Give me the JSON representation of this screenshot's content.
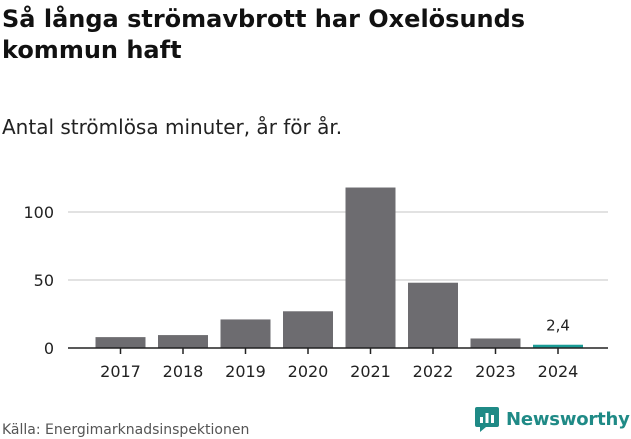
{
  "title": "Så långa strömavbrott har Oxelösunds kommun haft",
  "subtitle": "Antal strömlösa minuter, år för år.",
  "source": "Källa: Energimarknadsinspektionen",
  "brand": {
    "name": "Newsworthy",
    "icon": "newsworthy-logo-icon",
    "color": "#1f8a86"
  },
  "colors": {
    "bar": "#6d6c70",
    "highlight": "#1a9c96",
    "grid": "#d9d9d9",
    "axis": "#222222"
  },
  "chart_data": {
    "type": "bar",
    "title": "Så långa strömavbrott har Oxelösunds kommun haft",
    "subtitle": "Antal strömlösa minuter, år för år.",
    "xlabel": "",
    "ylabel": "",
    "categories": [
      "2017",
      "2018",
      "2019",
      "2020",
      "2021",
      "2022",
      "2023",
      "2024"
    ],
    "values": [
      8,
      9.5,
      21,
      27,
      118,
      48,
      7,
      2.4
    ],
    "highlight_index": 7,
    "annotation": {
      "index": 7,
      "text": "2,4"
    },
    "yticks": [
      0,
      50,
      100
    ],
    "ytick_labels": [
      "0",
      "50",
      "100"
    ],
    "ylim": [
      0,
      120
    ],
    "grid": true,
    "legend": "none"
  }
}
